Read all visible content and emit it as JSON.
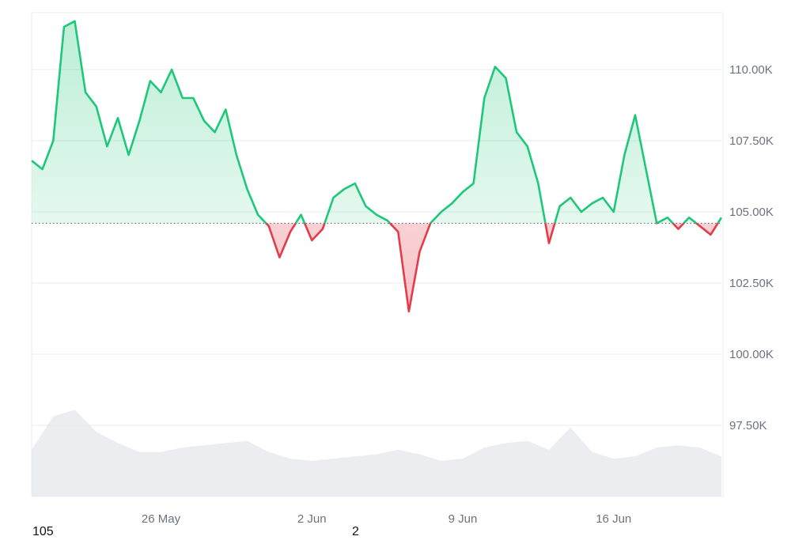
{
  "chart_data": {
    "type": "area",
    "x_range": [
      "2025-05-20",
      "2025-06-21"
    ],
    "ylim": [
      95000,
      112000
    ],
    "baseline": 104600,
    "y_ticks": [
      {
        "value": 110000,
        "label": "110.00K"
      },
      {
        "value": 107500,
        "label": "107.50K"
      },
      {
        "value": 105000,
        "label": "105.00K"
      },
      {
        "value": 102500,
        "label": "102.50K"
      },
      {
        "value": 100000,
        "label": "100.00K"
      },
      {
        "value": 97500,
        "label": "97.50K"
      }
    ],
    "x_ticks": [
      {
        "date": "2025-05-26",
        "label": "26 May"
      },
      {
        "date": "2025-06-02",
        "label": "2 Jun"
      },
      {
        "date": "2025-06-09",
        "label": "9 Jun"
      },
      {
        "date": "2025-06-16",
        "label": "16 Jun"
      }
    ],
    "grid": true,
    "series": [
      {
        "x": [
          "2025-05-20",
          "2025-05-20T12:00",
          "2025-05-21",
          "2025-05-21T12:00",
          "2025-05-22",
          "2025-05-22T12:00",
          "2025-05-23",
          "2025-05-23T12:00",
          "2025-05-24",
          "2025-05-24T12:00",
          "2025-05-25",
          "2025-05-25T12:00",
          "2025-05-26",
          "2025-05-26T12:00",
          "2025-05-27",
          "2025-05-27T12:00",
          "2025-05-28",
          "2025-05-28T12:00",
          "2025-05-29",
          "2025-05-29T12:00",
          "2025-05-30",
          "2025-05-30T12:00",
          "2025-05-31",
          "2025-05-31T12:00",
          "2025-06-01",
          "2025-06-01T12:00",
          "2025-06-02",
          "2025-06-02T12:00",
          "2025-06-03",
          "2025-06-03T12:00",
          "2025-06-04",
          "2025-06-04T12:00",
          "2025-06-05",
          "2025-06-05T12:00",
          "2025-06-06",
          "2025-06-06T12:00",
          "2025-06-07",
          "2025-06-07T12:00",
          "2025-06-08",
          "2025-06-08T12:00",
          "2025-06-09",
          "2025-06-09T12:00",
          "2025-06-10",
          "2025-06-10T12:00",
          "2025-06-11",
          "2025-06-11T12:00",
          "2025-06-12",
          "2025-06-12T12:00",
          "2025-06-13",
          "2025-06-13T12:00",
          "2025-06-14",
          "2025-06-14T12:00",
          "2025-06-15",
          "2025-06-15T12:00",
          "2025-06-16",
          "2025-06-16T12:00",
          "2025-06-17",
          "2025-06-17T12:00",
          "2025-06-18",
          "2025-06-18T12:00",
          "2025-06-19",
          "2025-06-19T12:00",
          "2025-06-20",
          "2025-06-20T12:00",
          "2025-06-21"
        ],
        "y": [
          106800,
          106500,
          107500,
          111500,
          111700,
          109200,
          108700,
          107300,
          108300,
          107000,
          108200,
          109600,
          109200,
          110000,
          109000,
          109000,
          108200,
          107800,
          108600,
          107000,
          105800,
          104900,
          104500,
          103400,
          104300,
          104900,
          104000,
          104400,
          105500,
          105800,
          106000,
          105200,
          104900,
          104700,
          104300,
          101500,
          103600,
          104600,
          105000,
          105300,
          105700,
          106000,
          109000,
          110100,
          109700,
          107800,
          107300,
          106000,
          103900,
          105200,
          105500,
          105000,
          105300,
          105500,
          105000,
          107000,
          108400,
          106500,
          104600,
          104800,
          104400,
          104800,
          104500,
          104200,
          104800
        ]
      }
    ],
    "volume": {
      "x": [
        "2025-05-20",
        "2025-05-21",
        "2025-05-22",
        "2025-05-23",
        "2025-05-24",
        "2025-05-25",
        "2025-05-26",
        "2025-05-27",
        "2025-05-28",
        "2025-05-29",
        "2025-05-30",
        "2025-05-31",
        "2025-06-01",
        "2025-06-02",
        "2025-06-03",
        "2025-06-04",
        "2025-06-05",
        "2025-06-06",
        "2025-06-07",
        "2025-06-08",
        "2025-06-09",
        "2025-06-10",
        "2025-06-11",
        "2025-06-12",
        "2025-06-13",
        "2025-06-14",
        "2025-06-15",
        "2025-06-16",
        "2025-06-17",
        "2025-06-18",
        "2025-06-19",
        "2025-06-20",
        "2025-06-21"
      ],
      "values": [
        0.42,
        0.72,
        0.78,
        0.58,
        0.48,
        0.4,
        0.4,
        0.44,
        0.46,
        0.48,
        0.5,
        0.4,
        0.34,
        0.32,
        0.34,
        0.36,
        0.38,
        0.42,
        0.38,
        0.32,
        0.34,
        0.44,
        0.48,
        0.5,
        0.42,
        0.62,
        0.4,
        0.34,
        0.36,
        0.44,
        0.46,
        0.44,
        0.36
      ]
    }
  },
  "colors": {
    "up_line": "#1fc77a",
    "down_line": "#e23b4a",
    "up_fill": "#2ecc80",
    "down_fill": "#e8505b",
    "volume": "#e5e7eb",
    "grid": "#e9ebee",
    "baseline": "#555555"
  },
  "footer": {
    "left": "105",
    "middle": "2"
  }
}
